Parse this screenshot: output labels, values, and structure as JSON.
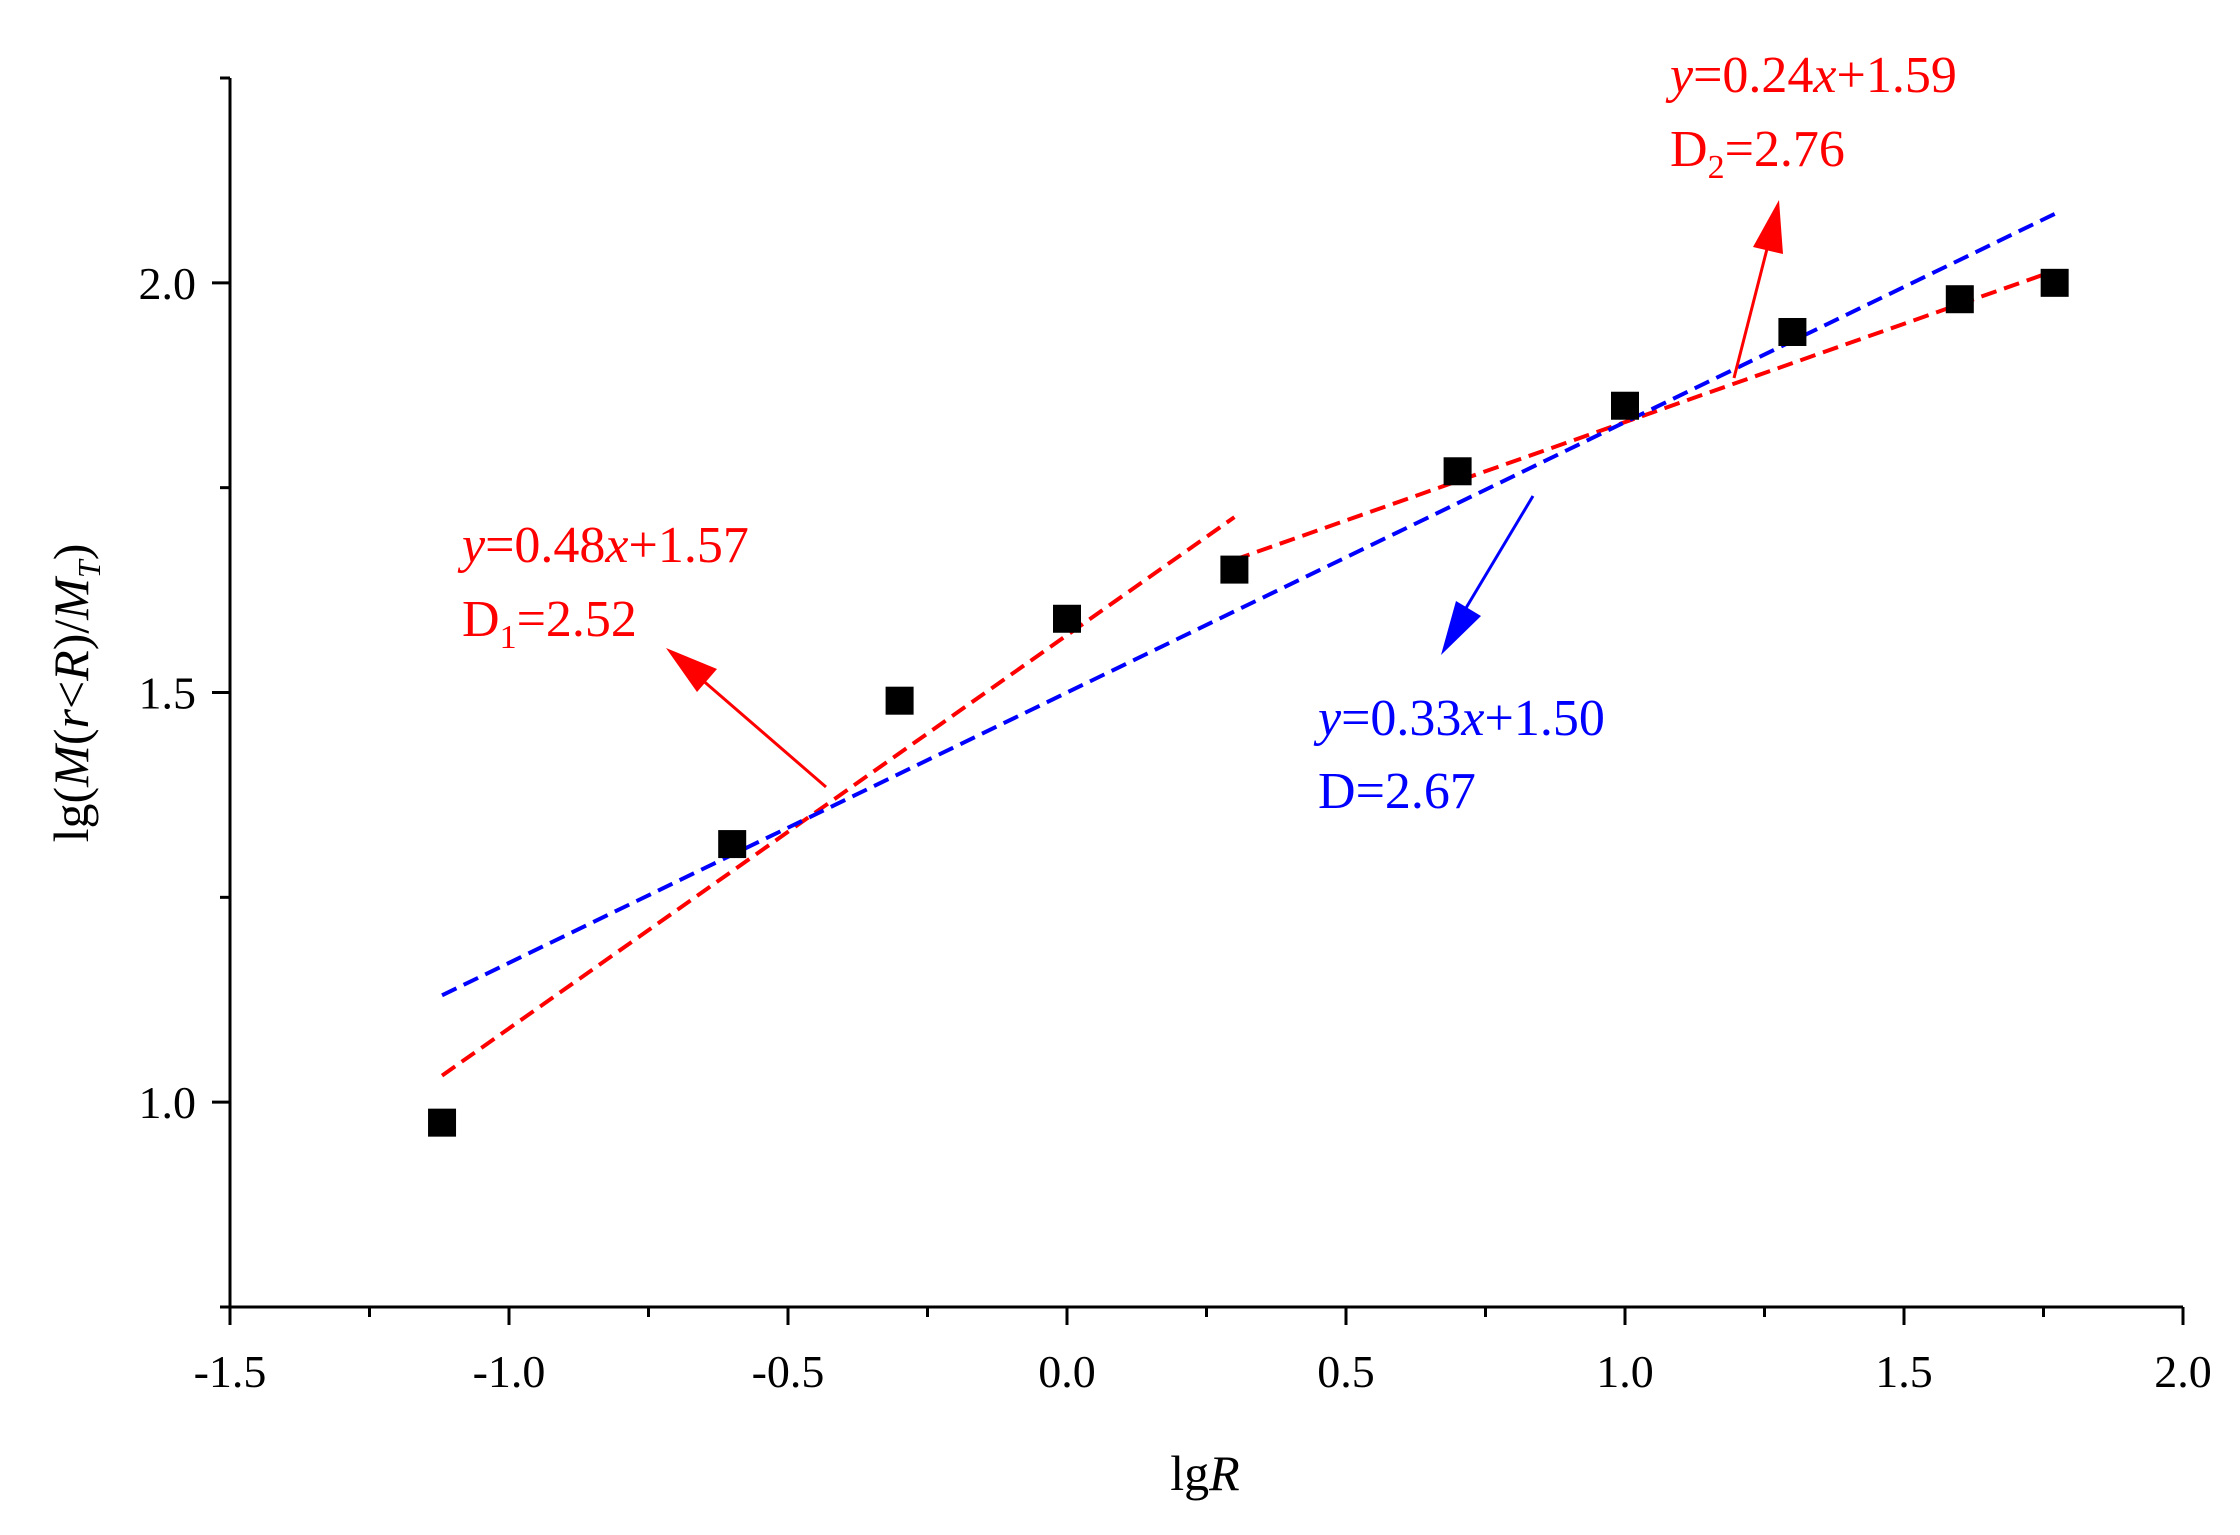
{
  "chart_data": {
    "type": "scatter",
    "title": "",
    "xlabel": {
      "prefix": "lg",
      "var": "R"
    },
    "ylabel": {
      "prefix": "lg(",
      "M": "M",
      "paren_open": "(",
      "r": "r",
      "lt": "<",
      "R": "R",
      "paren_close": ")/",
      "MT": "M",
      "T": "T",
      "suffix": ")"
    },
    "xlim": [
      -1.5,
      2.0
    ],
    "ylim": [
      0.75,
      2.25
    ],
    "xticks": [
      {
        "value": -1.5,
        "label": "-1.5"
      },
      {
        "value": -1.0,
        "label": "-1.0"
      },
      {
        "value": -0.5,
        "label": "-0.5"
      },
      {
        "value": 0.0,
        "label": "0.0"
      },
      {
        "value": 0.5,
        "label": "0.5"
      },
      {
        "value": 1.0,
        "label": "1.0"
      },
      {
        "value": 1.5,
        "label": "1.5"
      },
      {
        "value": 2.0,
        "label": "2.0"
      }
    ],
    "yticks": [
      {
        "value": 1.0,
        "label": "1.0"
      },
      {
        "value": 1.5,
        "label": "1.5"
      },
      {
        "value": 2.0,
        "label": "2.0"
      }
    ],
    "points": {
      "name": "data",
      "color": "#000000",
      "x": [
        -1.12,
        -0.6,
        -0.3,
        0.0,
        0.3,
        0.7,
        1.0,
        1.3,
        1.6,
        1.77
      ],
      "y": [
        0.975,
        1.315,
        1.49,
        1.59,
        1.65,
        1.77,
        1.85,
        1.94,
        1.98,
        2.0
      ]
    },
    "fits": [
      {
        "name": "fit-1",
        "color": "#ff0000",
        "slope": 0.48,
        "intercept": 1.57,
        "x_range": [
          -1.12,
          0.3
        ]
      },
      {
        "name": "fit-2",
        "color": "#ff0000",
        "slope": 0.24,
        "intercept": 1.59,
        "x_range": [
          0.3,
          1.77
        ]
      },
      {
        "name": "fit-all",
        "color": "#0000ff",
        "slope": 0.33,
        "intercept": 1.5,
        "x_range": [
          -1.12,
          1.77
        ]
      }
    ],
    "annotations": [
      {
        "name": "annotation-d1",
        "color": "#ff0000",
        "eq": {
          "y": "y",
          "mid": "=0.48",
          "x": "x",
          "rest": "+1.57"
        },
        "dim": {
          "D": "D",
          "sub": "1",
          "val": "=2.52"
        }
      },
      {
        "name": "annotation-d2",
        "color": "#ff0000",
        "eq": {
          "y": "y",
          "mid": "=0.24",
          "x": "x",
          "rest": "+1.59"
        },
        "dim": {
          "D": "D",
          "sub": "2",
          "val": "=2.76"
        }
      },
      {
        "name": "annotation-d",
        "color": "#0000ff",
        "eq": {
          "y": "y",
          "mid": "=0.33",
          "x": "x",
          "rest": "+1.50"
        },
        "dim": {
          "D": "D",
          "sub": "",
          "val": "=2.67"
        }
      }
    ]
  }
}
